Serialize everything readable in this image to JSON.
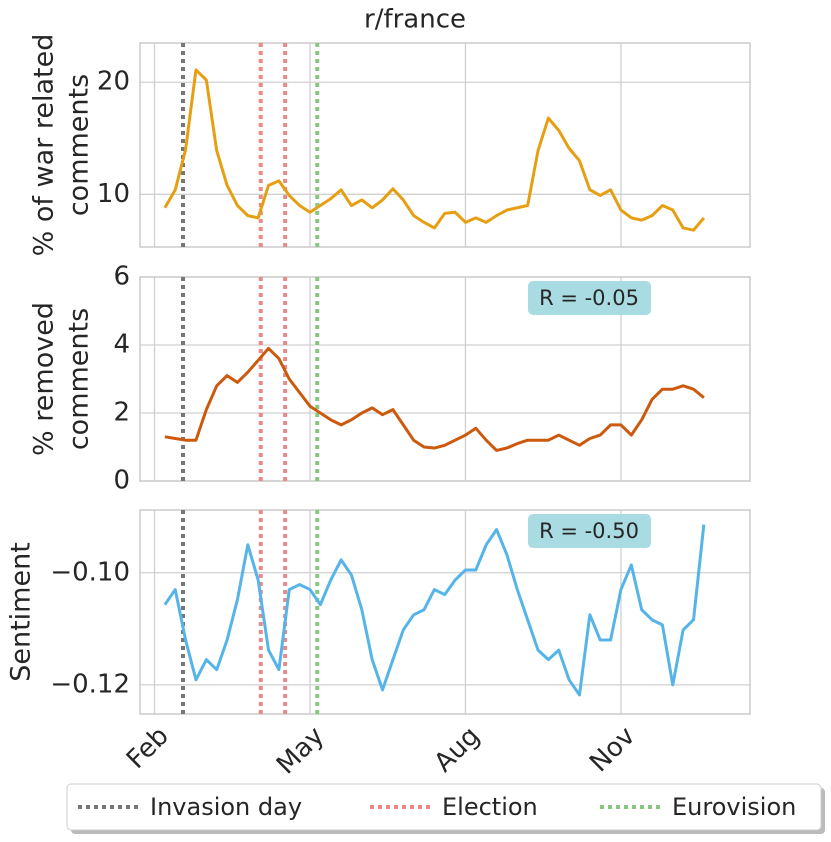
{
  "chart_data": [
    {
      "type": "line",
      "title": "r/france",
      "ylabel": [
        "% of war related",
        "comments"
      ],
      "color": "#e69f12",
      "xlim": [
        1.72,
        13.49
      ],
      "xticks": [
        2,
        5,
        8,
        11
      ],
      "ylim": [
        5.3,
        23.5
      ],
      "yticks": [
        10,
        20
      ],
      "grid": true,
      "x": [
        2.2,
        2.4,
        2.6,
        2.8,
        3.0,
        3.2,
        3.4,
        3.6,
        3.8,
        4.0,
        4.2,
        4.4,
        4.6,
        4.8,
        5.0,
        5.2,
        5.4,
        5.6,
        5.8,
        6.0,
        6.2,
        6.4,
        6.6,
        6.8,
        7.0,
        7.2,
        7.4,
        7.6,
        7.8,
        8.0,
        8.2,
        8.4,
        8.6,
        8.8,
        9.0,
        9.2,
        9.4,
        9.6,
        9.8,
        10.0,
        10.2,
        10.4,
        10.6,
        10.8,
        11.0,
        11.2,
        11.4,
        11.6,
        11.8,
        12.0,
        12.2,
        12.4,
        12.6
      ],
      "values": [
        8.8,
        10.4,
        14.0,
        21.1,
        20.2,
        13.9,
        10.8,
        9.0,
        8.1,
        7.9,
        10.8,
        11.2,
        9.9,
        9.0,
        8.4,
        9.0,
        9.6,
        10.4,
        9.0,
        9.5,
        8.8,
        9.5,
        10.5,
        9.5,
        8.1,
        7.5,
        7.0,
        8.3,
        8.4,
        7.5,
        7.9,
        7.5,
        8.1,
        8.6,
        8.8,
        9.0,
        13.9,
        16.8,
        15.7,
        14.1,
        13.0,
        10.4,
        9.9,
        10.4,
        8.6,
        7.9,
        7.7,
        8.1,
        9.0,
        8.6,
        7.0,
        6.8,
        7.9
      ]
    },
    {
      "type": "line",
      "ylabel": [
        "% removed",
        "comments"
      ],
      "color": "#cc5a0e",
      "annotation": "R = -0.05",
      "xlim": [
        1.72,
        13.49
      ],
      "xticks": [
        2,
        5,
        8,
        11
      ],
      "ylim": [
        0,
        6
      ],
      "yticks": [
        0,
        2,
        4,
        6
      ],
      "grid": true,
      "x": [
        2.2,
        2.4,
        2.6,
        2.8,
        3.0,
        3.2,
        3.4,
        3.6,
        3.8,
        4.0,
        4.2,
        4.4,
        4.6,
        4.8,
        5.0,
        5.2,
        5.4,
        5.6,
        5.8,
        6.0,
        6.2,
        6.4,
        6.6,
        6.8,
        7.0,
        7.2,
        7.4,
        7.6,
        7.8,
        8.0,
        8.2,
        8.4,
        8.6,
        8.8,
        9.0,
        9.2,
        9.4,
        9.6,
        9.8,
        10.0,
        10.2,
        10.4,
        10.6,
        10.8,
        11.0,
        11.2,
        11.4,
        11.6,
        11.8,
        12.0,
        12.2,
        12.4,
        12.6
      ],
      "values": [
        1.3,
        1.25,
        1.2,
        1.2,
        2.1,
        2.8,
        3.1,
        2.9,
        3.2,
        3.55,
        3.9,
        3.6,
        3.0,
        2.6,
        2.2,
        2.0,
        1.8,
        1.65,
        1.8,
        2.0,
        2.15,
        1.95,
        2.1,
        1.65,
        1.2,
        1.0,
        0.97,
        1.05,
        1.2,
        1.35,
        1.55,
        1.2,
        0.9,
        0.97,
        1.1,
        1.2,
        1.2,
        1.2,
        1.35,
        1.2,
        1.05,
        1.25,
        1.35,
        1.65,
        1.65,
        1.35,
        1.8,
        2.4,
        2.7,
        2.7,
        2.8,
        2.7,
        2.45
      ]
    },
    {
      "type": "line",
      "ylabel": [
        "Sentiment"
      ],
      "color": "#56b4e9",
      "annotation": "R = -0.50",
      "xlim": [
        1.72,
        13.49
      ],
      "xticks": [
        {
          "value": 2,
          "label": "Feb"
        },
        {
          "value": 5,
          "label": "May"
        },
        {
          "value": 8,
          "label": "Aug"
        },
        {
          "value": 11,
          "label": "Nov"
        }
      ],
      "ylim": [
        -0.1252,
        -0.0888
      ],
      "yticks": [
        {
          "value": -0.1,
          "label": "−0.10"
        },
        {
          "value": -0.12,
          "label": "−0.12"
        }
      ],
      "grid": true,
      "x": [
        2.2,
        2.4,
        2.6,
        2.8,
        3.0,
        3.2,
        3.4,
        3.6,
        3.8,
        4.0,
        4.2,
        4.4,
        4.6,
        4.8,
        5.0,
        5.2,
        5.4,
        5.6,
        5.8,
        6.0,
        6.2,
        6.4,
        6.6,
        6.8,
        7.0,
        7.2,
        7.4,
        7.6,
        7.8,
        8.0,
        8.2,
        8.4,
        8.6,
        8.8,
        9.0,
        9.2,
        9.4,
        9.6,
        9.8,
        10.0,
        10.2,
        10.4,
        10.6,
        10.8,
        11.0,
        11.2,
        11.4,
        11.6,
        11.8,
        12.0,
        12.2,
        12.4,
        12.6
      ],
      "values": [
        -0.1057,
        -0.103,
        -0.112,
        -0.1191,
        -0.1155,
        -0.1173,
        -0.112,
        -0.1048,
        -0.095,
        -0.1013,
        -0.1138,
        -0.1173,
        -0.103,
        -0.1021,
        -0.103,
        -0.1057,
        -0.1013,
        -0.0977,
        -0.1004,
        -0.1066,
        -0.1155,
        -0.1209,
        -0.1155,
        -0.1102,
        -0.1075,
        -0.1066,
        -0.103,
        -0.1039,
        -0.1013,
        -0.0995,
        -0.0995,
        -0.095,
        -0.0923,
        -0.0968,
        -0.103,
        -0.1084,
        -0.1138,
        -0.1155,
        -0.1138,
        -0.1191,
        -0.1218,
        -0.1075,
        -0.112,
        -0.112,
        -0.103,
        -0.0986,
        -0.1066,
        -0.1084,
        -0.1093,
        -0.12,
        -0.1102,
        -0.1084,
        -0.0914
      ]
    }
  ],
  "events": [
    {
      "name": "Invasion day",
      "color": "#777777",
      "x": [
        2.55
      ]
    },
    {
      "name": "Election",
      "color": "#e88a8a",
      "x": [
        4.05,
        4.52
      ]
    },
    {
      "name": "Eurovision",
      "color": "#84c97e",
      "x": [
        5.14
      ]
    }
  ]
}
